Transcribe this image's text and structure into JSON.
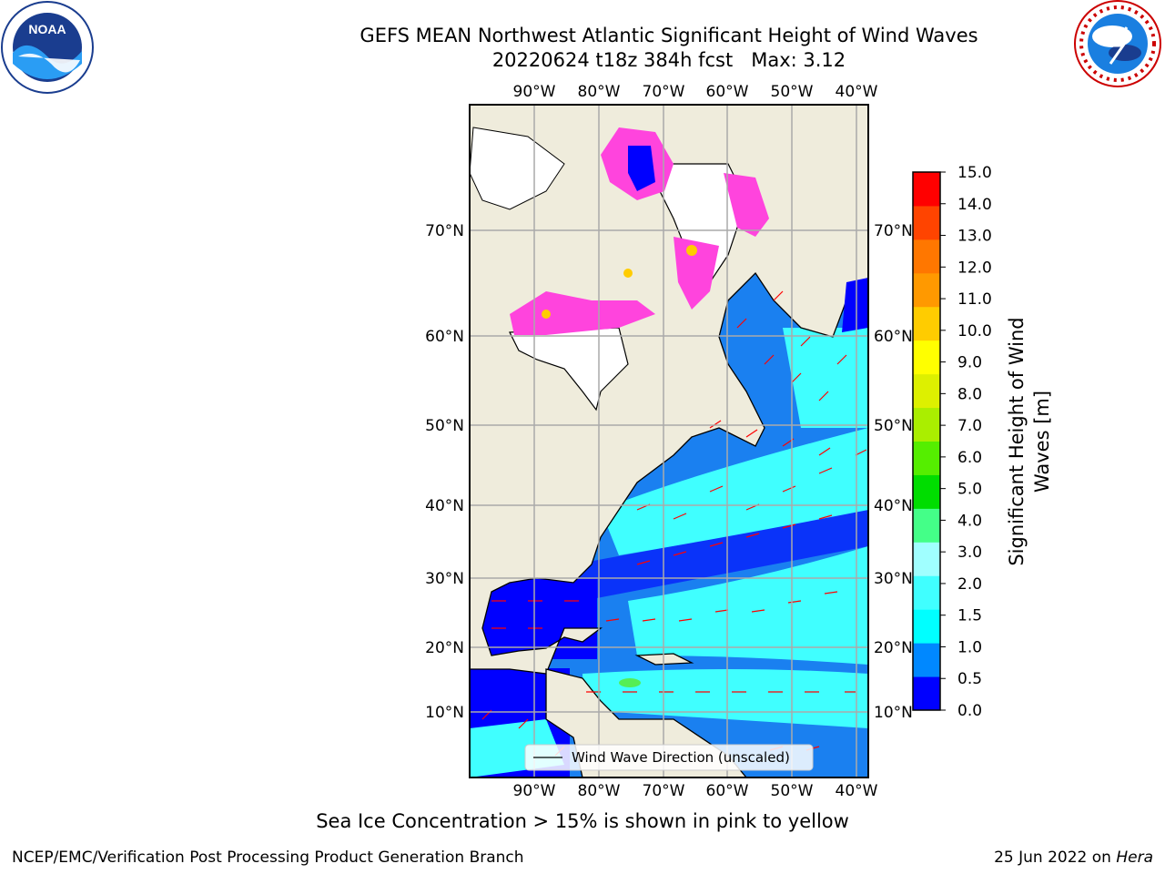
{
  "title": {
    "line1": "GEFS MEAN Northwest Atlantic Significant Height of Wind Waves",
    "line2": "20220624 t18z 384h fcst   Max: 3.12"
  },
  "logos": {
    "left": {
      "icon": "noaa-logo",
      "text": "NOAA",
      "ring_text": "NATIONAL OCEANIC AND ATMOSPHERIC ADMINISTRATION · U.S. DEPARTMENT OF COMMERCE"
    },
    "right": {
      "icon": "nws-logo",
      "ring_text": "NATIONAL WEATHER SERVICE"
    }
  },
  "map": {
    "lon_labels": [
      "90°W",
      "80°W",
      "70°W",
      "60°W",
      "50°W",
      "40°W"
    ],
    "lat_labels": [
      "70°N",
      "60°N",
      "50°N",
      "40°N",
      "30°N",
      "20°N",
      "10°N"
    ],
    "legend_label": "Wind Wave Direction (unscaled)",
    "colors": {
      "land": "#efecdc",
      "ice_pink": "#ff44dd",
      "ice_yellow": "#ffcc00",
      "arrow": "#ff0000"
    }
  },
  "colorbar": {
    "label": "Significant Height of Wind Waves [m]",
    "ticks": [
      "15.0",
      "14.0",
      "13.0",
      "12.0",
      "11.0",
      "10.0",
      "9.0",
      "8.0",
      "7.0",
      "6.0",
      "5.0",
      "4.0",
      "3.0",
      "2.0",
      "1.5",
      "1.0",
      "0.5",
      "0.0"
    ],
    "colors": [
      "#0000ff",
      "#0088ff",
      "#00ffff",
      "#40ffff",
      "#a0ffff",
      "#44ff88",
      "#00dd00",
      "#55ee00",
      "#aaee00",
      "#ddf000",
      "#ffff00",
      "#ffcc00",
      "#ff9900",
      "#ff7700",
      "#ff4400",
      "#ff0000"
    ]
  },
  "footer": {
    "note": "Sea Ice Concentration > 15% is shown in pink to yellow",
    "left": "NCEP/EMC/Verification Post Processing Product Generation Branch",
    "right_prefix": "25 Jun 2022 on ",
    "right_host": "Hera"
  }
}
